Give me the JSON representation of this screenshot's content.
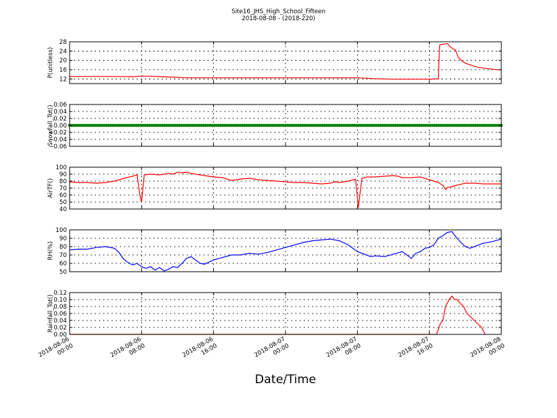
{
  "figure": {
    "title_line1": "Site16_JHS_High_School_Fifteen",
    "title_line2": "2018-08-08 - (2018-220)",
    "xlabel": "Date/Time",
    "x_ticks": [
      {
        "t": 0,
        "line1": "2018-08-06",
        "line2": "00:00"
      },
      {
        "t": 8,
        "line1": "2018-08-06",
        "line2": "08:00"
      },
      {
        "t": 16,
        "line1": "2018-08-06",
        "line2": "16:00"
      },
      {
        "t": 24,
        "line1": "2018-08-07",
        "line2": "00:00"
      },
      {
        "t": 32,
        "line1": "2018-08-07",
        "line2": "08:00"
      },
      {
        "t": 40,
        "line1": "2018-08-07",
        "line2": "16:00"
      },
      {
        "t": 48,
        "line1": "2018-08-08",
        "line2": "00:00"
      }
    ]
  },
  "chart_data": [
    {
      "type": "line",
      "ylabel": "P(unitless)",
      "ylim": [
        10,
        28
      ],
      "yticks": [
        12,
        16,
        20,
        24,
        28
      ],
      "ytick_labels": [
        "12",
        "16",
        "20",
        "24",
        "28"
      ],
      "color": "#ff0000",
      "grid": true,
      "x": [
        0,
        4,
        7,
        8,
        9,
        10,
        12,
        13,
        14,
        16,
        20,
        24,
        28,
        31,
        32,
        33,
        34,
        35,
        36,
        38,
        40,
        41,
        41.05,
        41.15,
        41.3,
        41.6,
        42,
        42.3,
        42.6,
        42.9,
        43.2,
        43.4,
        43.6,
        43.8,
        44.2,
        44.6,
        45,
        45.5,
        46,
        46.5,
        47,
        47.5,
        48
      ],
      "y": [
        13.1,
        13.1,
        13.0,
        13.2,
        13.2,
        13.0,
        12.7,
        12.5,
        12.5,
        12.5,
        12.5,
        12.5,
        12.5,
        12.5,
        12.5,
        12.3,
        12.1,
        12.0,
        11.9,
        11.9,
        11.9,
        12.1,
        18,
        26.5,
        26.8,
        27.0,
        27.2,
        26.0,
        25.0,
        24.5,
        21.5,
        20.5,
        19.8,
        19.2,
        18.5,
        18.0,
        17.4,
        17.0,
        16.7,
        16.4,
        16.2,
        16.0,
        15.9
      ]
    },
    {
      "type": "line",
      "ylabel": "Snowfall_Tot()",
      "ylim": [
        -0.06,
        0.06
      ],
      "yticks": [
        -0.06,
        -0.04,
        -0.02,
        0.0,
        0.02,
        0.04,
        0.06
      ],
      "ytick_labels": [
        "−0.06",
        "−0.04",
        "−0.02",
        "0.00",
        "0.02",
        "0.04",
        "0.06"
      ],
      "color": "#008000",
      "markers": true,
      "grid": true,
      "x": [
        0,
        48
      ],
      "y": [
        0,
        0
      ]
    },
    {
      "type": "line",
      "ylabel": "AirTF()",
      "ylim": [
        40,
        100
      ],
      "yticks": [
        40,
        50,
        60,
        70,
        80,
        90,
        100
      ],
      "ytick_labels": [
        "40",
        "50",
        "60",
        "70",
        "80",
        "90",
        "100"
      ],
      "color": "#ff0000",
      "grid": true,
      "x": [
        0,
        1,
        2,
        3,
        4,
        5,
        6,
        7,
        7.5,
        7.8,
        8.0,
        8.3,
        9,
        10,
        10.5,
        11,
        11.5,
        12,
        12.5,
        13,
        13.5,
        14,
        15,
        16,
        17,
        17.5,
        18,
        19,
        20,
        21,
        22,
        23,
        24,
        25,
        26,
        27,
        28,
        29,
        29.5,
        30,
        31,
        31.8,
        32.1,
        32.5,
        33,
        34,
        35,
        36,
        36.5,
        37,
        38,
        39,
        40,
        40.5,
        41,
        41.5,
        41.8,
        42,
        42.5,
        43,
        44,
        45,
        46,
        47,
        48
      ],
      "y": [
        79,
        78,
        78,
        77,
        78,
        80,
        84,
        87,
        89,
        60,
        50,
        89,
        90,
        89,
        90,
        91,
        90,
        93,
        92,
        93,
        91,
        90,
        88,
        86,
        85,
        83,
        81,
        83,
        84,
        82,
        81,
        80,
        79,
        78,
        78,
        77,
        76,
        77,
        79,
        78,
        80,
        83,
        42,
        84,
        86,
        86,
        87,
        88,
        87,
        85,
        85,
        86,
        82,
        80,
        78,
        74,
        68,
        71,
        72,
        74,
        77,
        77,
        76,
        76,
        76
      ]
    },
    {
      "type": "line",
      "ylabel": "RH(%)",
      "ylim": [
        50,
        100
      ],
      "yticks": [
        50,
        60,
        70,
        80,
        90,
        100
      ],
      "ytick_labels": [
        "50",
        "60",
        "70",
        "80",
        "90",
        "100"
      ],
      "color": "#0000ff",
      "grid": true,
      "x": [
        0,
        1,
        2,
        3,
        4,
        5,
        5.5,
        6,
        6.5,
        7,
        7.5,
        8,
        8.5,
        9,
        9.5,
        10,
        10.5,
        11,
        11.5,
        12,
        12.5,
        13,
        13.5,
        14,
        14.5,
        15,
        16,
        17,
        18,
        19,
        20,
        21,
        22,
        23,
        24,
        25,
        26,
        27,
        28,
        29,
        30,
        31,
        32,
        32.5,
        33,
        33.5,
        34,
        35,
        36,
        37,
        38,
        38.5,
        39,
        39.5,
        40,
        40.5,
        41,
        41.5,
        42,
        42.5,
        43,
        43.5,
        44,
        44.5,
        45,
        45.5,
        46,
        47,
        48
      ],
      "y": [
        76,
        77,
        77,
        79,
        80,
        78,
        73,
        65,
        61,
        58,
        60,
        56,
        54,
        56,
        52,
        55,
        51,
        53,
        56,
        55,
        60,
        66,
        68,
        64,
        60,
        59,
        64,
        67,
        70,
        70,
        72,
        71,
        73,
        76,
        79,
        82,
        85,
        87,
        88,
        89,
        87,
        82,
        74,
        72,
        70,
        68,
        69,
        68,
        71,
        74,
        66,
        72,
        74,
        78,
        79,
        82,
        90,
        93,
        97,
        98,
        91,
        85,
        80,
        78,
        80,
        82,
        84,
        86,
        89
      ]
    },
    {
      "type": "line",
      "ylabel": "Rainfall_Tot()",
      "ylim": [
        0,
        0.12
      ],
      "yticks": [
        0.0,
        0.02,
        0.04,
        0.06,
        0.08,
        0.1,
        0.12
      ],
      "ytick_labels": [
        "0.00",
        "0.02",
        "0.04",
        "0.06",
        "0.08",
        "0.10",
        "0.12"
      ],
      "color": "#ff0000",
      "grid": true,
      "x": [
        0,
        40.8,
        41.2,
        41.5,
        41.8,
        42.2,
        42.5,
        42.8,
        43.1,
        43.4,
        43.8,
        44.2,
        44.6,
        45,
        45.4,
        45.8,
        46.2
      ],
      "y": [
        0,
        0,
        0.03,
        0.04,
        0.08,
        0.1,
        0.11,
        0.1,
        0.1,
        0.09,
        0.08,
        0.06,
        0.05,
        0.04,
        0.03,
        0.02,
        0.0
      ]
    }
  ]
}
